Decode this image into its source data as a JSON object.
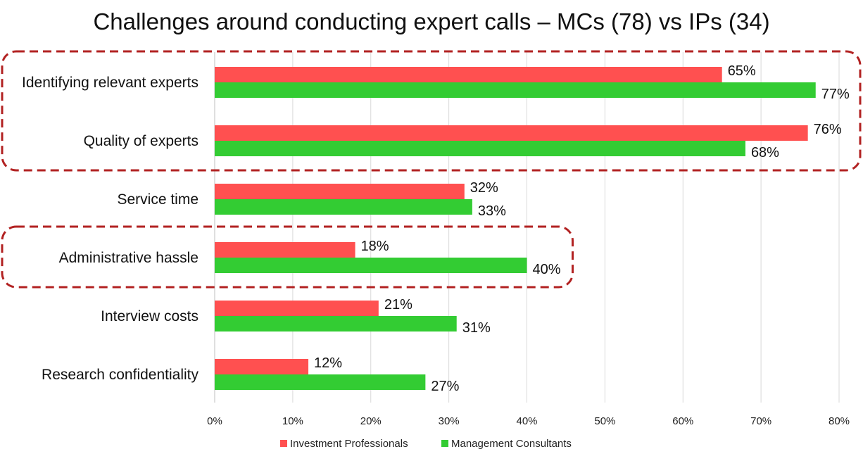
{
  "chart_data": {
    "type": "bar",
    "orientation": "horizontal",
    "title": "Challenges around conducting expert calls – MCs (78) vs IPs (34)",
    "categories": [
      "Identifying relevant experts",
      "Quality of experts",
      "Service time",
      "Administrative hassle",
      "Interview costs",
      "Research confidentiality"
    ],
    "series": [
      {
        "name": "Investment Professionals",
        "color": "#ff5050",
        "values": [
          65,
          76,
          32,
          18,
          21,
          12
        ]
      },
      {
        "name": "Management Consultants",
        "color": "#33cc33",
        "values": [
          77,
          68,
          33,
          40,
          31,
          27
        ]
      }
    ],
    "value_labels": [
      [
        "65%",
        "76%",
        "32%",
        "18%",
        "21%",
        "12%"
      ],
      [
        "77%",
        "68%",
        "33%",
        "40%",
        "31%",
        "27%"
      ]
    ],
    "xlim": [
      0,
      80
    ],
    "xticks": [
      "0%",
      "10%",
      "20%",
      "30%",
      "40%",
      "50%",
      "60%",
      "70%",
      "80%"
    ],
    "grid": "vertical",
    "legend": "bottom",
    "highlight_groups": [
      {
        "categories": [
          "Identifying relevant experts",
          "Quality of experts"
        ],
        "style": "dashed",
        "color": "#b22222"
      },
      {
        "categories": [
          "Administrative hassle"
        ],
        "style": "dashed",
        "color": "#b22222"
      }
    ]
  }
}
